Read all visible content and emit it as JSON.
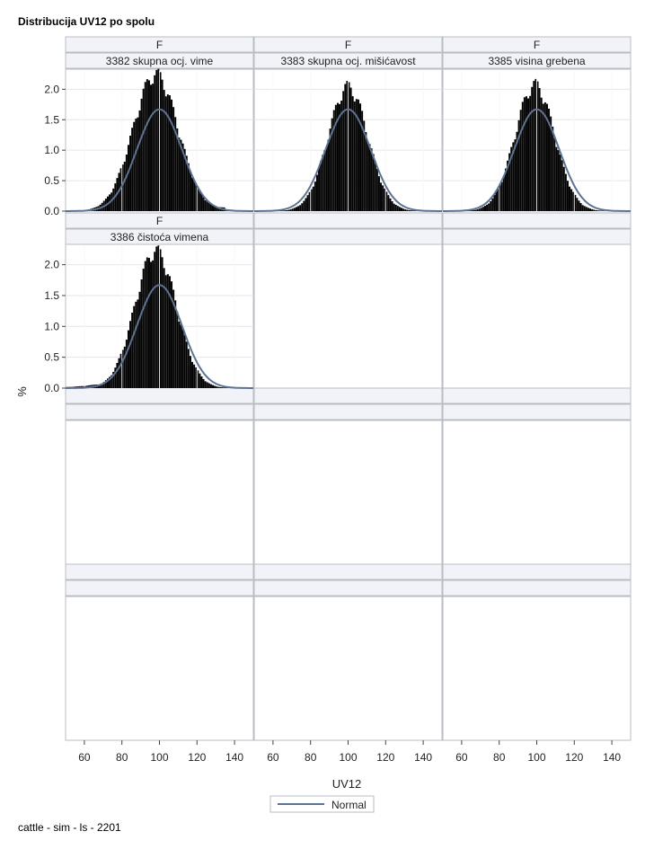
{
  "title": "Distribucija UV12 po spolu",
  "footnote": "cattle - sim - ls - 2201",
  "colors": {
    "bar": "#000000",
    "normal_curve": "#5e7393",
    "header_fill": "#f2f3f8",
    "frame": "#b8bcc4",
    "grid": "#e6e6e6"
  },
  "chart_data": [
    {
      "type": "bar",
      "panel_header": "F",
      "panel_label": "3382 skupna ocj. vime",
      "xlabel": "UV12",
      "ylabel": "%",
      "xlim": [
        50,
        150
      ],
      "ylim": [
        0,
        2.3
      ],
      "x_ticks": [
        60,
        80,
        100,
        120,
        140
      ],
      "y_ticks": [
        0.0,
        0.5,
        1.0,
        1.5,
        2.0
      ],
      "histogram": {
        "mean": 100,
        "sd": 12,
        "peak_pct": 2.2,
        "peak_at": 98,
        "skew": "right"
      },
      "normal": {
        "mean": 100,
        "sd": 12,
        "peak_pct": 1.67
      }
    },
    {
      "type": "bar",
      "panel_header": "F",
      "panel_label": "3383 skupna ocj. mišićavost",
      "xlabel": "UV12",
      "ylabel": "%",
      "xlim": [
        50,
        150
      ],
      "ylim": [
        0,
        2.3
      ],
      "x_ticks": [
        60,
        80,
        100,
        120,
        140
      ],
      "y_ticks": [
        0.0,
        0.5,
        1.0,
        1.5,
        2.0
      ],
      "histogram": {
        "mean": 100,
        "sd": 10.5,
        "peak_pct": 2.0,
        "peak_at": 100,
        "skew": "none"
      },
      "normal": {
        "mean": 100,
        "sd": 12,
        "peak_pct": 1.67
      }
    },
    {
      "type": "bar",
      "panel_header": "F",
      "panel_label": "3385 visina grebena",
      "xlabel": "UV12",
      "ylabel": "%",
      "xlim": [
        50,
        150
      ],
      "ylim": [
        0,
        2.3
      ],
      "x_ticks": [
        60,
        80,
        100,
        120,
        140
      ],
      "y_ticks": [
        0.0,
        0.5,
        1.0,
        1.5,
        2.0
      ],
      "histogram": {
        "mean": 100,
        "sd": 10.5,
        "peak_pct": 2.03,
        "peak_at": 99,
        "skew": "none"
      },
      "normal": {
        "mean": 100,
        "sd": 12,
        "peak_pct": 1.67
      }
    },
    {
      "type": "bar",
      "panel_header": "F",
      "panel_label": "3386 čistoća vimena",
      "xlabel": "UV12",
      "ylabel": "%",
      "xlim": [
        50,
        150
      ],
      "ylim": [
        0,
        2.3
      ],
      "x_ticks": [
        60,
        80,
        100,
        120,
        140
      ],
      "y_ticks": [
        0.0,
        0.5,
        1.0,
        1.5,
        2.0
      ],
      "histogram": {
        "mean": 100,
        "sd": 11,
        "peak_pct": 2.18,
        "peak_at": 98,
        "skew": "left"
      },
      "normal": {
        "mean": 100,
        "sd": 12,
        "peak_pct": 1.67
      }
    }
  ],
  "legend": {
    "label": "Normal"
  },
  "axes": {
    "x_label": "UV12",
    "y_label": "%",
    "x_tick_labels": [
      "60",
      "80",
      "100",
      "120",
      "140"
    ],
    "y_tick_labels": [
      "2.0",
      "1.5",
      "1.0",
      "0.5",
      "0.0"
    ]
  }
}
